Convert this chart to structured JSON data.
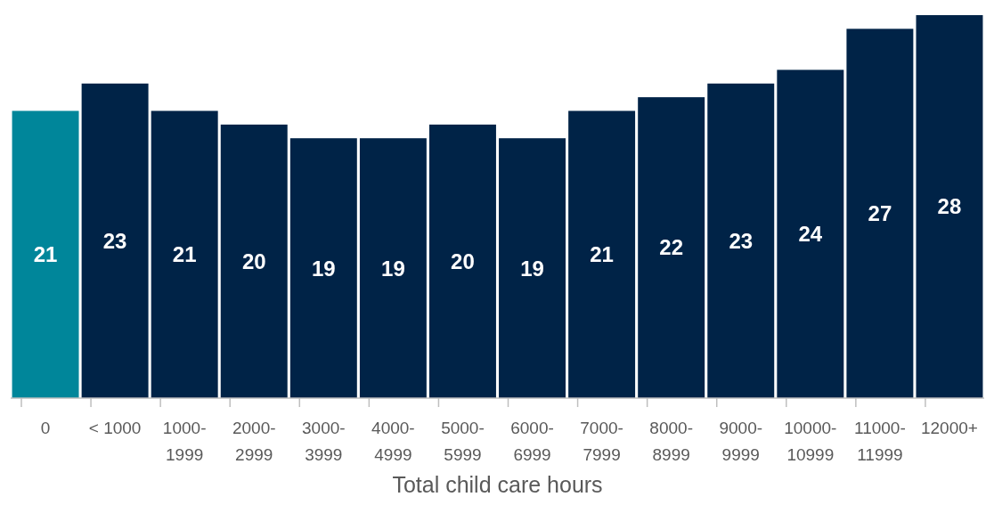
{
  "chart_data": {
    "type": "bar",
    "xlabel": "Total child care hours",
    "categories": [
      "0",
      "< 1000",
      "1000-1999",
      "2000-2999",
      "3000-3999",
      "4000-4999",
      "5000-5999",
      "6000-6999",
      "7000-7999",
      "8000-8999",
      "9000-9999",
      "10000-10999",
      "11000-11999",
      "12000+"
    ],
    "values": [
      21,
      23,
      21,
      20,
      19,
      19,
      20,
      19,
      21,
      22,
      23,
      24,
      27,
      28
    ],
    "colors": [
      "#00869a",
      "#002347",
      "#002347",
      "#002347",
      "#002347",
      "#002347",
      "#002347",
      "#002347",
      "#002347",
      "#002347",
      "#002347",
      "#002347",
      "#002347",
      "#002347"
    ],
    "data_labels": true
  }
}
